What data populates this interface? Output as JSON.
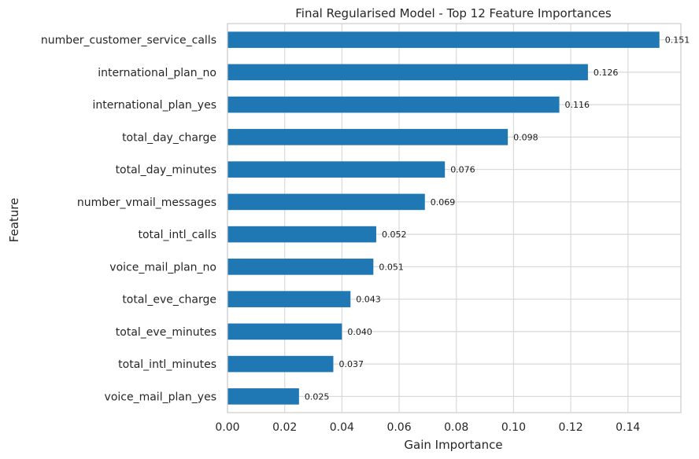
{
  "chart_data": {
    "type": "bar",
    "orientation": "horizontal",
    "title": "Final Regularised Model - Top 12 Feature Importances",
    "xlabel": "Gain Importance",
    "ylabel": "Feature",
    "categories": [
      "number_customer_service_calls",
      "international_plan_no",
      "international_plan_yes",
      "total_day_charge",
      "total_day_minutes",
      "number_vmail_messages",
      "total_intl_calls",
      "voice_mail_plan_no",
      "total_eve_charge",
      "total_eve_minutes",
      "total_intl_minutes",
      "voice_mail_plan_yes"
    ],
    "values": [
      0.151,
      0.126,
      0.116,
      0.098,
      0.076,
      0.069,
      0.052,
      0.051,
      0.043,
      0.04,
      0.037,
      0.025
    ],
    "value_labels": [
      "0.151",
      "0.126",
      "0.116",
      "0.098",
      "0.076",
      "0.069",
      "0.052",
      "0.051",
      "0.043",
      "0.040",
      "0.037",
      "0.025"
    ],
    "xticks": [
      0.0,
      0.02,
      0.04,
      0.06,
      0.08,
      0.1,
      0.12,
      0.14
    ],
    "xtick_labels": [
      "0.00",
      "0.02",
      "0.04",
      "0.06",
      "0.08",
      "0.10",
      "0.12",
      "0.14"
    ],
    "xlim": [
      0,
      0.1585
    ],
    "grid": true,
    "bar_color": "#1f77b4",
    "grid_color": "#d9d9d9",
    "spine_color": "#cccccc"
  }
}
